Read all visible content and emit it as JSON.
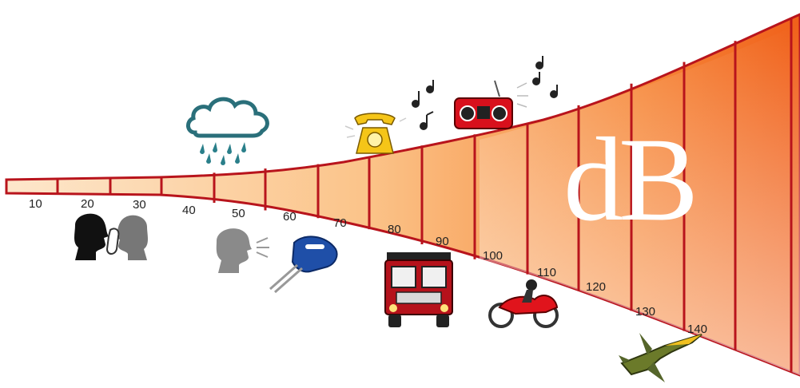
{
  "diagram": {
    "unit_label": "dB",
    "scale": [
      {
        "value": 10,
        "label": "10"
      },
      {
        "value": 20,
        "label": "20"
      },
      {
        "value": 30,
        "label": "30"
      },
      {
        "value": 40,
        "label": "40"
      },
      {
        "value": 50,
        "label": "50"
      },
      {
        "value": 60,
        "label": "60"
      },
      {
        "value": 70,
        "label": "70"
      },
      {
        "value": 80,
        "label": "80"
      },
      {
        "value": 90,
        "label": "90"
      },
      {
        "value": 100,
        "label": "100"
      },
      {
        "value": 110,
        "label": "110"
      },
      {
        "value": 120,
        "label": "120"
      },
      {
        "value": 130,
        "label": "130"
      },
      {
        "value": 140,
        "label": "140"
      }
    ],
    "illustrations": [
      {
        "icon": "whispering-people-icon",
        "level": 20
      },
      {
        "icon": "rain-cloud-icon",
        "level": 40
      },
      {
        "icon": "talking-person-icon",
        "level": 50
      },
      {
        "icon": "hand-mixer-icon",
        "level": 60
      },
      {
        "icon": "ringing-telephone-icon",
        "level": 75
      },
      {
        "icon": "truck-icon",
        "level": 85
      },
      {
        "icon": "boombox-icon",
        "level": 95
      },
      {
        "icon": "motorcycle-icon",
        "level": 110
      },
      {
        "icon": "fighter-jet-icon",
        "level": 140
      }
    ],
    "colors": {
      "band_outline": "#b8141c",
      "band_light": "#fde6c8",
      "band_dark": "#f26a1b",
      "unit_text": "#ffffff"
    }
  }
}
